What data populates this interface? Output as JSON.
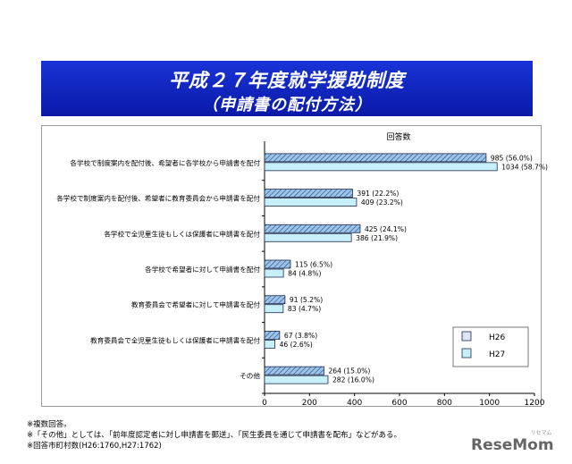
{
  "title_line1": "平成２７年度就学援助制度",
  "title_line2": "（申請書の配付方法）",
  "chart_data": {
    "type": "bar",
    "orientation": "horizontal",
    "title": "回答数",
    "categories": [
      "各学校で制度案内を配付後、希望者に各学校から申請書を配付",
      "各学校で制度案内を配付後、希望者に教育委員会から申請書を配付",
      "各学校で全児童生徒もしくは保護者に申請書を配付",
      "各学校で希望者に対して申請書を配付",
      "教育委員会で希望者に対して申請書を配付",
      "教育委員会で全児童生徒もしくは保護者に申請書を配付",
      "その他"
    ],
    "series": [
      {
        "name": "H26",
        "color": "#9ec3e6",
        "pattern": "hatched",
        "values": [
          985,
          391,
          425,
          115,
          91,
          67,
          264
        ],
        "labels": [
          "985 (56.0%)",
          "391 (22.2%)",
          "425 (24.1%)",
          "115 (6.5%)",
          "91 (5.2%)",
          "67 (3.8%)",
          "264 (15.0%)"
        ]
      },
      {
        "name": "H27",
        "color": "#c7f0fb",
        "pattern": "solid",
        "values": [
          1034,
          409,
          386,
          84,
          83,
          46,
          282
        ],
        "labels": [
          "1034 (58.7%)",
          "409 (23.2%)",
          "386 (21.9%)",
          "84 (4.8%)",
          "83 (4.7%)",
          "46 (2.6%)",
          "282 (16.0%)"
        ]
      }
    ],
    "xlim": [
      0,
      1200
    ],
    "xticks": [
      "0",
      "200",
      "400",
      "600",
      "800",
      "1000",
      "1200"
    ],
    "legend_position": "bottom-right",
    "grid": false
  },
  "notes": [
    "※複数回答。",
    "※「その他」としては、「前年度認定者に対し申請書を郵送」、「民生委員を通じて申請書を配布」などがある。",
    "※回答市町村数(H26:1760,H27:1762)"
  ],
  "logo": {
    "main": "ReseMom",
    "sub": "リセマム"
  }
}
